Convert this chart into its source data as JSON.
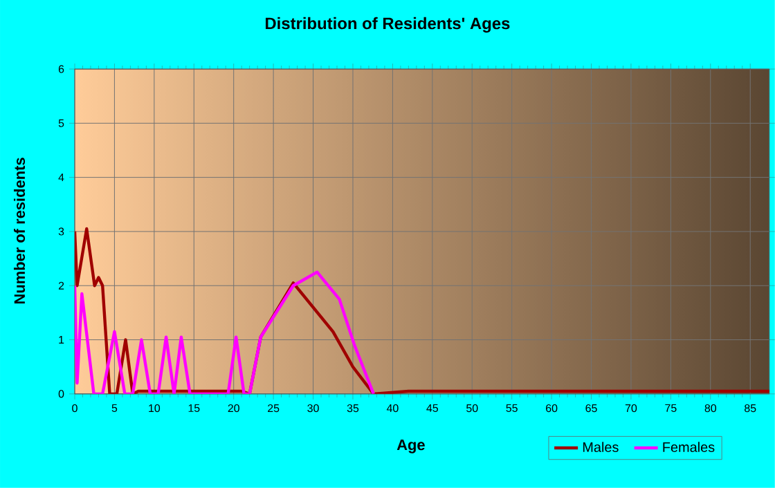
{
  "chart_data": {
    "type": "line",
    "title": "Distribution of Residents' Ages",
    "xlabel": "Age",
    "ylabel": "Number of residents",
    "xlim": [
      0,
      87.4
    ],
    "xticks": [
      0,
      5,
      10,
      15,
      20,
      25,
      30,
      35,
      40,
      45,
      50,
      55,
      60,
      65,
      70,
      75,
      80,
      85
    ],
    "ylim": [
      0,
      6
    ],
    "yticks": [
      0,
      1,
      2,
      3,
      4,
      5,
      6
    ],
    "grid": true,
    "legend": "bottom right",
    "marker": "none",
    "line_style": "solid",
    "series": [
      {
        "name": "Males",
        "color": "#a00000",
        "x": [
          0,
          0.3,
          1.5,
          2.5,
          3,
          3.5,
          4.4,
          5.3,
          6.4,
          7.3,
          8,
          21,
          22,
          23.4,
          27.5,
          30,
          32.5,
          35,
          37.6,
          42,
          87.4
        ],
        "values": [
          3,
          2,
          3.05,
          2,
          2.15,
          2,
          0,
          0,
          1,
          0,
          0.05,
          0.05,
          0,
          1.05,
          2.05,
          1.6,
          1.15,
          0.5,
          0,
          0.05,
          0.05
        ]
      },
      {
        "name": "Females",
        "color": "#ff00ff",
        "x": [
          0,
          0.3,
          0.9,
          2.4,
          3.5,
          5,
          6.3,
          7.3,
          8.4,
          9.5,
          10.5,
          11.5,
          12.5,
          13.4,
          14.5,
          19.3,
          20.3,
          21.3,
          22,
          23.4,
          27.5,
          30.5,
          33.3,
          35.2,
          37.6
        ],
        "values": [
          2,
          0.2,
          1.85,
          0,
          0,
          1.15,
          0,
          0,
          1,
          0,
          0,
          1.05,
          0,
          1.05,
          0,
          0,
          1.05,
          0,
          0,
          1.05,
          2.0,
          2.25,
          1.75,
          0.9,
          0
        ]
      }
    ]
  }
}
